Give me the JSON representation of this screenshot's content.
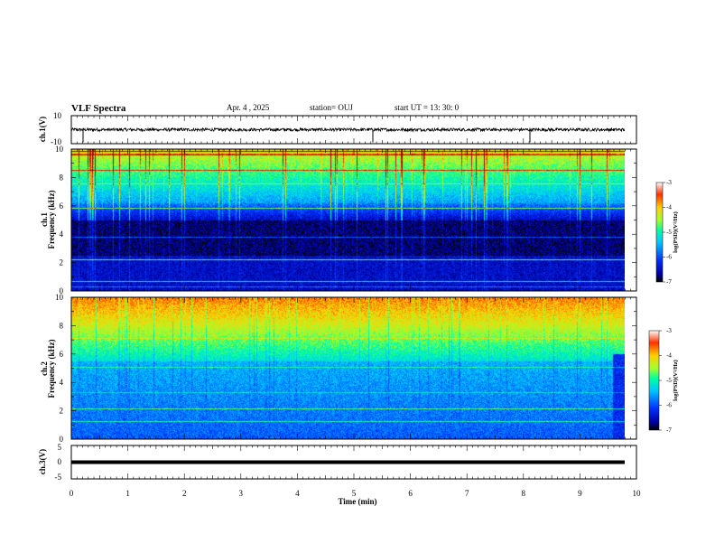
{
  "header": {
    "title": "VLF Spectra",
    "date": "Apr. 4  , 2025",
    "station": "station= OUJ",
    "start": "start  UT  =   13: 30: 0"
  },
  "chart_data": [
    {
      "type": "line",
      "name": "ch1-waveform",
      "ylabel": "ch.1(V)",
      "ylim": [
        -10,
        10
      ],
      "yticks": [
        "10",
        "-10"
      ],
      "xlim": [
        0,
        10
      ],
      "baseline": 0,
      "line_color": "#000000"
    },
    {
      "type": "heatmap",
      "name": "ch1-spectrogram",
      "ylabel": "ch.1\nFrequency  (kHz)",
      "ylabel_lines": [
        "ch.1",
        "Frequency  (kHz)"
      ],
      "ylim": [
        0,
        10
      ],
      "yticks": [
        "0",
        "2",
        "4",
        "6",
        "8",
        "10"
      ],
      "xlim": [
        0,
        9.8
      ],
      "colorbar": {
        "label": "log(PSD)(V²/Hz)",
        "range": [
          -7,
          -3
        ],
        "ticks": [
          "-3",
          "-4",
          "-5",
          "-6",
          "-7"
        ]
      }
    },
    {
      "type": "heatmap",
      "name": "ch2-spectrogram",
      "ylabel": "ch.2\nFrequency  (kHz)",
      "ylabel_lines": [
        "ch.2",
        "Frequency  (kHz)"
      ],
      "ylim": [
        0,
        10
      ],
      "yticks": [
        "0",
        "2",
        "4",
        "6",
        "8",
        "10"
      ],
      "xlim": [
        0,
        9.8
      ],
      "colorbar": {
        "label": "log(PSD)(V²/Hz)",
        "range": [
          -7,
          -3
        ],
        "ticks": [
          "-3",
          "-4",
          "-5",
          "-6",
          "-7"
        ]
      }
    },
    {
      "type": "line",
      "name": "ch3-waveform",
      "ylabel": "ch.3(V)",
      "ylim": [
        -5,
        5
      ],
      "yticks": [
        "5",
        "0",
        "-5"
      ],
      "xlim": [
        0,
        10
      ],
      "baseline": 0,
      "line_color": "#000000"
    }
  ],
  "xaxis": {
    "label": "Time  (min)",
    "ticks": [
      "0",
      "1",
      "2",
      "3",
      "4",
      "5",
      "6",
      "7",
      "8",
      "9",
      "10"
    ],
    "range": [
      0,
      10
    ]
  },
  "colors": {
    "colormap": [
      "#000000",
      "#0000a0",
      "#0030ff",
      "#00c8ff",
      "#00ffa0",
      "#a0ff30",
      "#ffd000",
      "#ff3000",
      "#a00000"
    ]
  }
}
